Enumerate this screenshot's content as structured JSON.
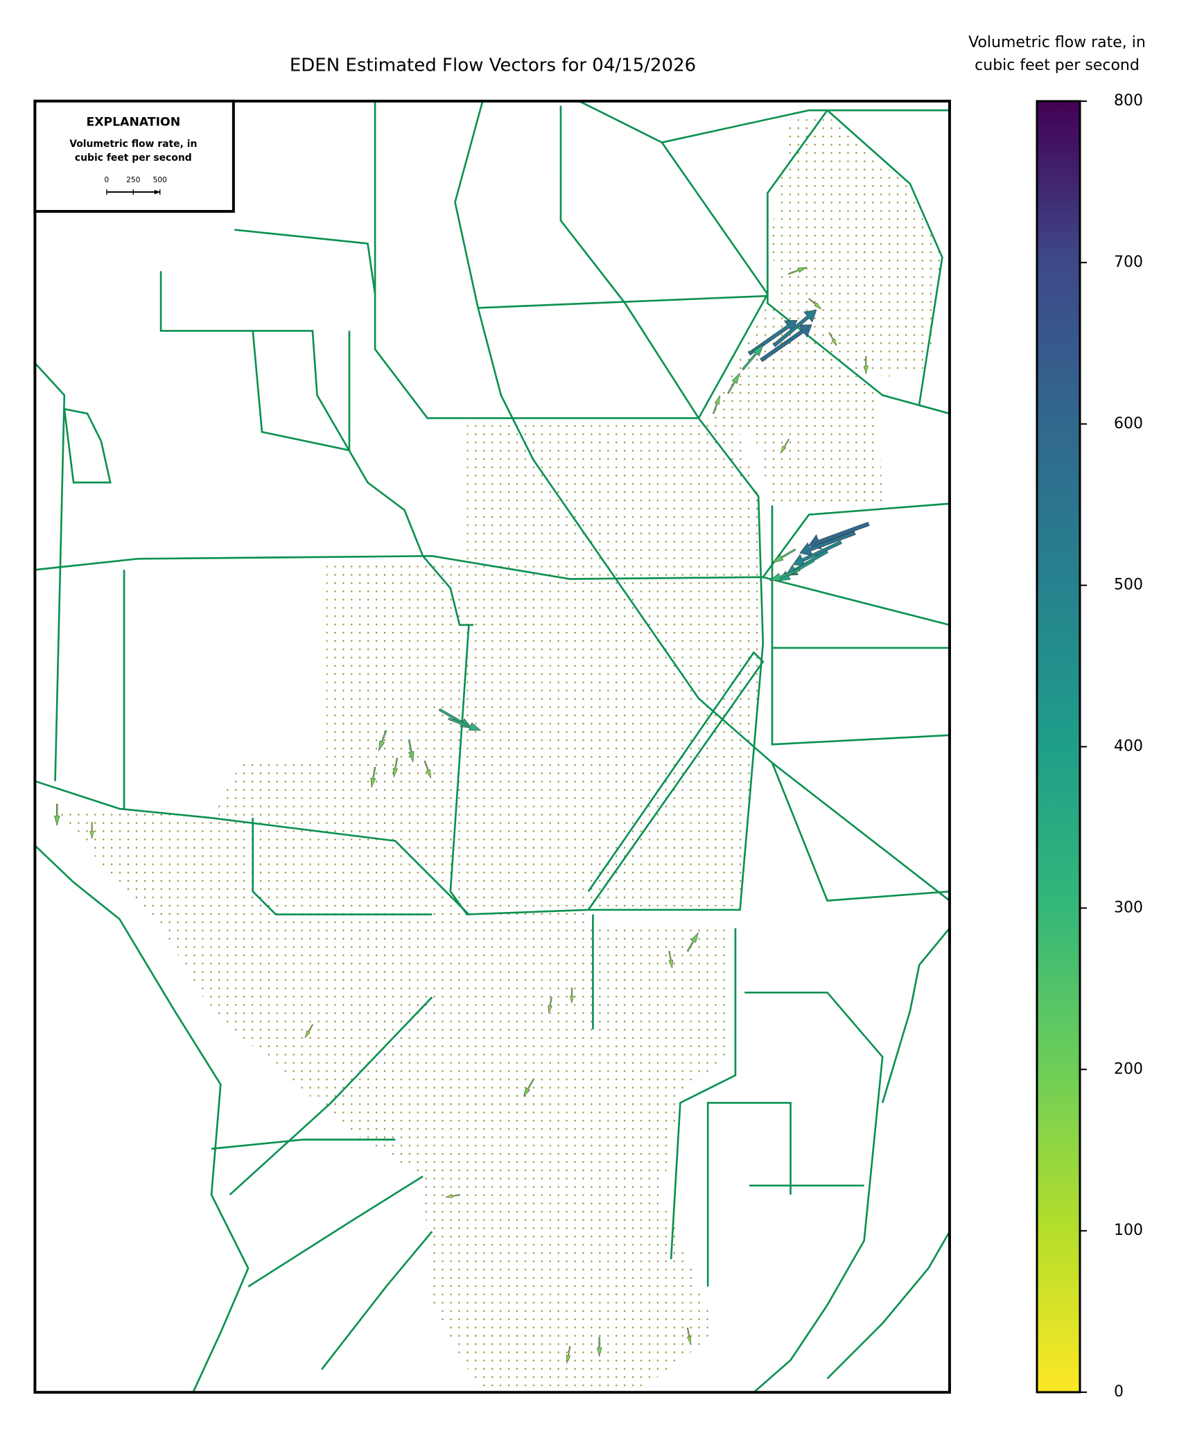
{
  "chart_data": {
    "type": "quiver",
    "title": "EDEN Estimated Flow Vectors for 04/15/2026",
    "colorbar_label": [
      "Volumetric flow rate, in",
      "cubic feet per second"
    ],
    "clim": [
      0,
      800
    ],
    "cticks": [
      0,
      100,
      200,
      300,
      400,
      500,
      600,
      700,
      800
    ],
    "explanation": {
      "title": "EXPLANATION",
      "label": [
        "Volumetric flow rate, in",
        "cubic feet per second"
      ],
      "scale_ticks": [
        0,
        250,
        500
      ]
    },
    "vectors": {
      "flow": [
        550,
        580,
        520,
        300,
        220,
        180,
        600,
        550,
        500,
        450,
        380,
        300,
        250,
        350,
        320,
        200,
        180,
        210,
        190,
        170,
        180,
        150,
        140,
        200,
        160,
        180,
        160,
        150,
        200,
        150,
        140,
        130,
        180,
        150,
        140,
        160,
        150
      ],
      "direction": [
        -35,
        -35,
        -40,
        -50,
        -60,
        -70,
        160,
        160,
        155,
        150,
        150,
        160,
        150,
        30,
        20,
        110,
        100,
        80,
        100,
        70,
        120,
        100,
        90,
        -60,
        80,
        90,
        100,
        80,
        90,
        90,
        120,
        170,
        -20,
        40,
        60,
        90,
        120
      ]
    }
  }
}
